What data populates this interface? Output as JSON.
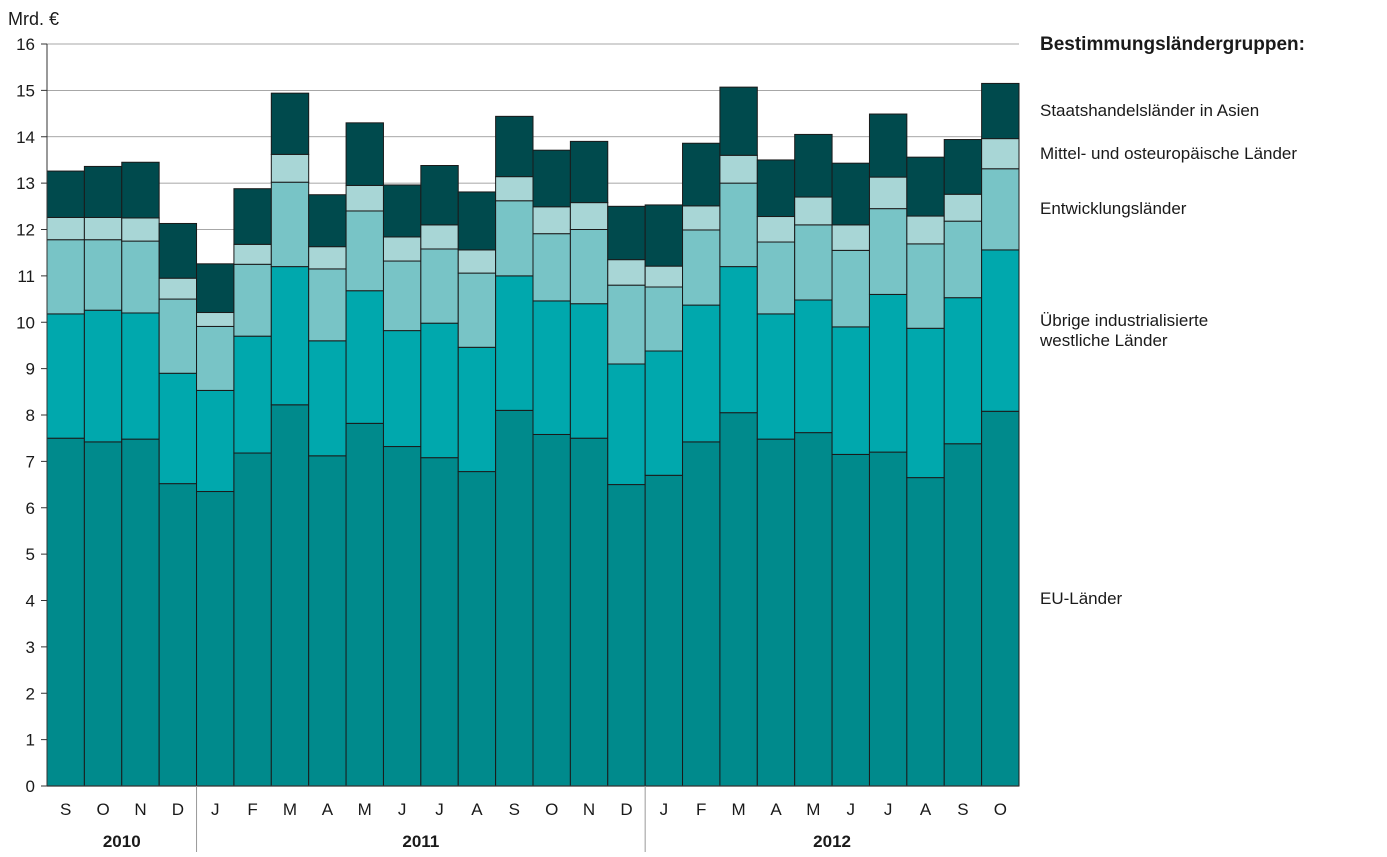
{
  "chart_data": {
    "type": "bar",
    "stacked": true,
    "unit_label": "Mrd. €",
    "categories": [
      "S",
      "O",
      "N",
      "D",
      "J",
      "F",
      "M",
      "A",
      "M",
      "J",
      "J",
      "A",
      "S",
      "O",
      "N",
      "D",
      "J",
      "F",
      "M",
      "A",
      "M",
      "J",
      "J",
      "A",
      "S",
      "O"
    ],
    "years": [
      {
        "label": "2010",
        "from": 0,
        "to": 3
      },
      {
        "label": "2011",
        "from": 4,
        "to": 15
      },
      {
        "label": "2012",
        "from": 16,
        "to": 25
      }
    ],
    "ylim": [
      0,
      16
    ],
    "yticks": [
      0,
      1,
      2,
      3,
      4,
      5,
      6,
      7,
      8,
      9,
      10,
      11,
      12,
      13,
      14,
      15,
      16
    ],
    "legend_title": "Bestimmungsländergruppen:",
    "series": [
      {
        "name": "EU-Länder",
        "color": "#008a8c",
        "values": [
          7.5,
          7.42,
          7.48,
          6.52,
          6.35,
          7.18,
          8.22,
          7.12,
          7.82,
          7.32,
          7.08,
          6.78,
          8.1,
          7.58,
          7.5,
          6.5,
          6.7,
          7.42,
          8.05,
          7.48,
          7.62,
          7.15,
          7.2,
          6.65,
          7.38,
          8.08
        ]
      },
      {
        "name": "Übrige industrialisierte\nwestliche Länder",
        "color": "#00a8ad",
        "values": [
          2.68,
          2.84,
          2.72,
          2.38,
          2.18,
          2.52,
          2.98,
          2.48,
          2.86,
          2.5,
          2.9,
          2.68,
          2.9,
          2.88,
          2.9,
          2.6,
          2.68,
          2.95,
          3.15,
          2.7,
          2.86,
          2.75,
          3.4,
          3.22,
          3.15,
          3.48
        ]
      },
      {
        "name": "Entwicklungsländer",
        "color": "#78c4c6",
        "values": [
          1.6,
          1.52,
          1.55,
          1.6,
          1.38,
          1.55,
          1.82,
          1.55,
          1.72,
          1.5,
          1.6,
          1.6,
          1.62,
          1.45,
          1.6,
          1.7,
          1.38,
          1.62,
          1.8,
          1.55,
          1.62,
          1.65,
          1.85,
          1.82,
          1.65,
          1.75
        ]
      },
      {
        "name": "Mittel- und osteuropäische Länder",
        "color": "#a8d6d6",
        "values": [
          0.48,
          0.48,
          0.5,
          0.45,
          0.3,
          0.43,
          0.6,
          0.48,
          0.55,
          0.52,
          0.52,
          0.5,
          0.52,
          0.58,
          0.58,
          0.55,
          0.45,
          0.52,
          0.6,
          0.55,
          0.6,
          0.55,
          0.68,
          0.6,
          0.58,
          0.65
        ]
      },
      {
        "name": "Staatshandelsländer in Asien",
        "color": "#004a4d",
        "values": [
          1.0,
          1.1,
          1.2,
          1.18,
          1.05,
          1.2,
          1.32,
          1.12,
          1.35,
          1.12,
          1.28,
          1.25,
          1.3,
          1.22,
          1.32,
          1.15,
          1.32,
          1.35,
          1.47,
          1.22,
          1.35,
          1.33,
          1.36,
          1.27,
          1.18,
          1.19
        ]
      }
    ]
  }
}
